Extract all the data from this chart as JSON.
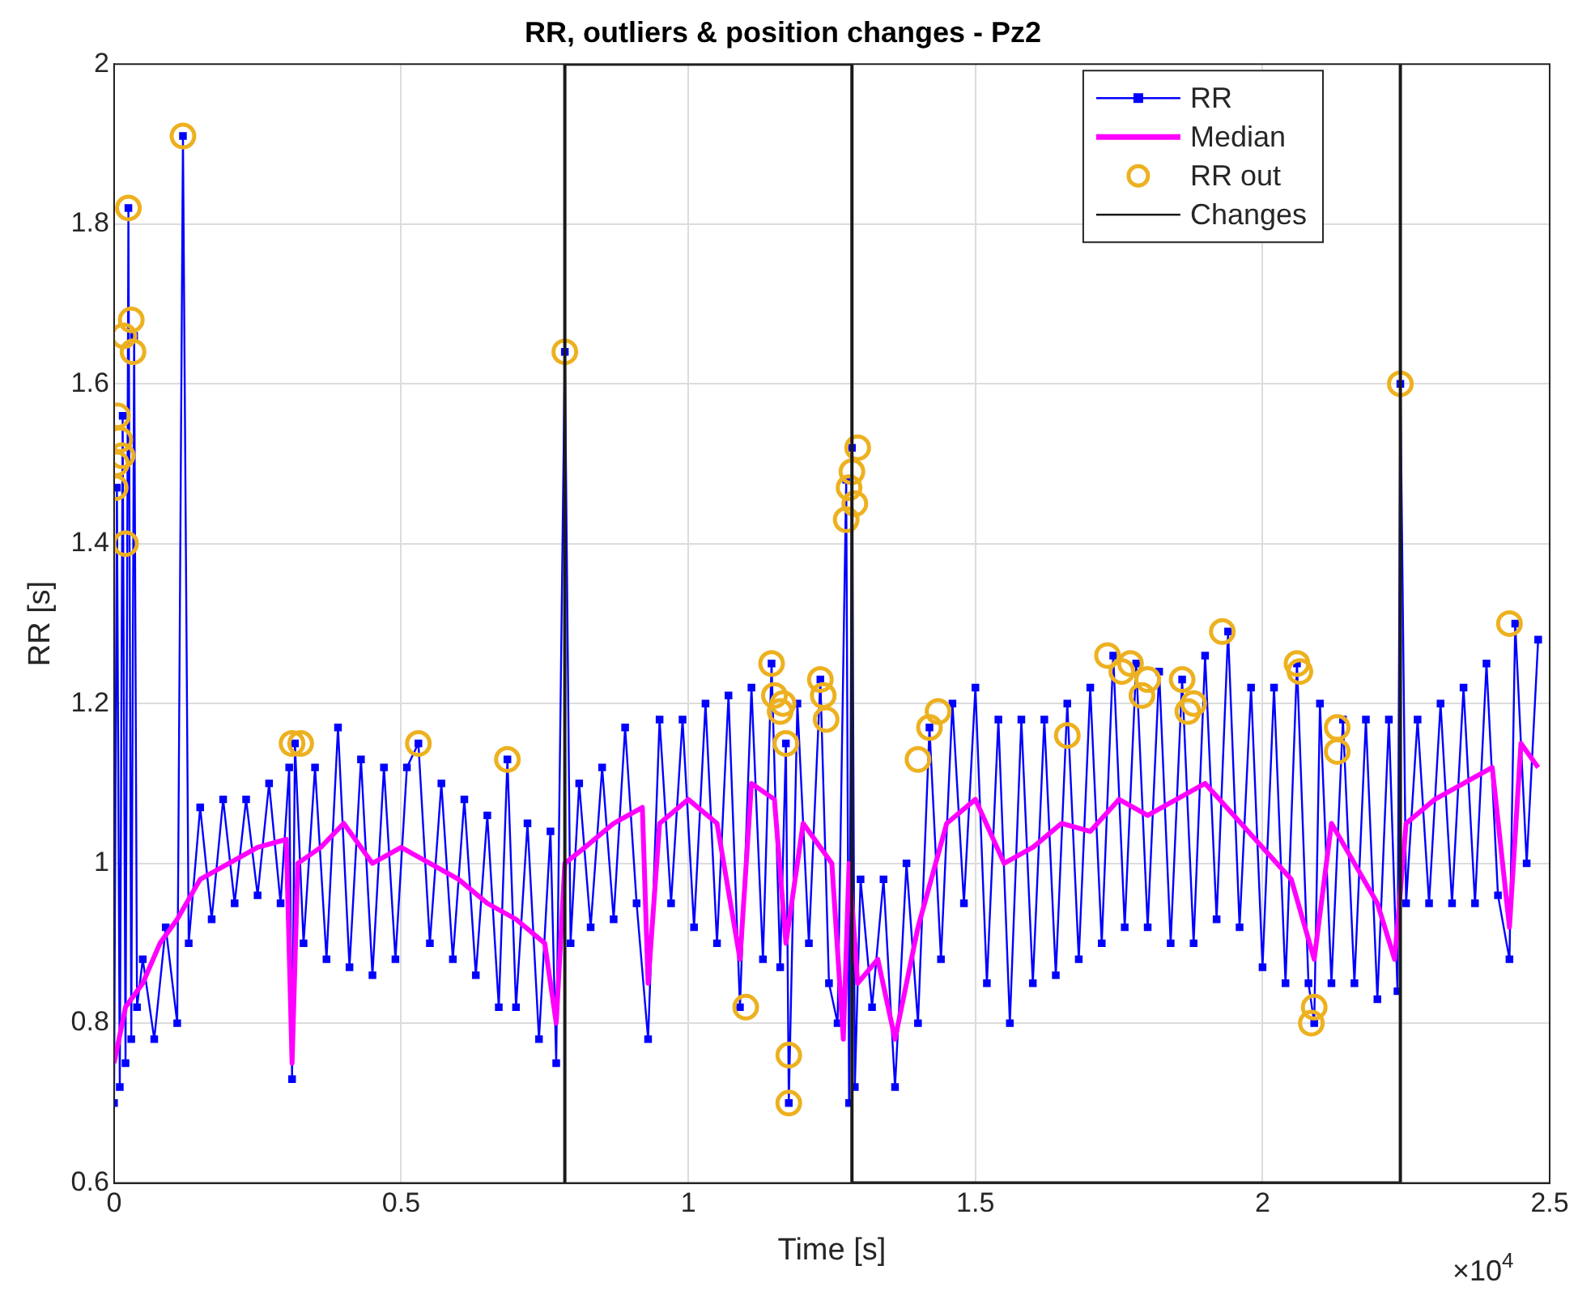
{
  "chart_data": {
    "type": "line",
    "title": "RR, outliers & position changes - Pz2",
    "xlabel": "Time [s]",
    "ylabel": "RR [s]",
    "xlim": [
      0,
      2.5
    ],
    "xticks": [
      0,
      0.5,
      1,
      1.5,
      2,
      2.5
    ],
    "ylim": [
      0.6,
      2
    ],
    "yticks": [
      0.6,
      0.8,
      1,
      1.2,
      1.4,
      1.6,
      1.8,
      2
    ],
    "grid": true,
    "legend": "top right",
    "annotations": [
      "×10$^{4}$"
    ],
    "series": [
      {
        "name": "RR",
        "color": "#0000ff",
        "marker": "square",
        "x": [
          0,
          0.005,
          0.01,
          0.015,
          0.02,
          0.025,
          0.03,
          0.035,
          0.04,
          0.05,
          0.07,
          0.09,
          0.11,
          0.12,
          0.13,
          0.15,
          0.17,
          0.19,
          0.21,
          0.23,
          0.25,
          0.27,
          0.29,
          0.305,
          0.31,
          0.315,
          0.33,
          0.35,
          0.37,
          0.39,
          0.41,
          0.43,
          0.45,
          0.47,
          0.49,
          0.51,
          0.53,
          0.55,
          0.57,
          0.59,
          0.61,
          0.63,
          0.65,
          0.67,
          0.685,
          0.7,
          0.72,
          0.74,
          0.76,
          0.77,
          0.785,
          0.795,
          0.81,
          0.83,
          0.85,
          0.87,
          0.89,
          0.91,
          0.93,
          0.95,
          0.97,
          0.99,
          1.01,
          1.03,
          1.05,
          1.07,
          1.09,
          1.11,
          1.13,
          1.145,
          1.16,
          1.17,
          1.175,
          1.19,
          1.21,
          1.23,
          1.245,
          1.26,
          1.275,
          1.28,
          1.285,
          1.29,
          1.3,
          1.32,
          1.34,
          1.36,
          1.38,
          1.4,
          1.42,
          1.44,
          1.46,
          1.48,
          1.5,
          1.52,
          1.54,
          1.56,
          1.58,
          1.6,
          1.62,
          1.64,
          1.66,
          1.68,
          1.7,
          1.72,
          1.74,
          1.76,
          1.78,
          1.8,
          1.82,
          1.84,
          1.86,
          1.88,
          1.9,
          1.92,
          1.94,
          1.96,
          1.98,
          2,
          2.02,
          2.04,
          2.06,
          2.08,
          2.09,
          2.1,
          2.12,
          2.14,
          2.16,
          2.18,
          2.2,
          2.22,
          2.235,
          2.24,
          2.25,
          2.27,
          2.29,
          2.31,
          2.33,
          2.35,
          2.37,
          2.39,
          2.41,
          2.43,
          2.44,
          2.46,
          2.48
        ],
        "values": [
          0.7,
          1.47,
          0.72,
          1.56,
          0.75,
          1.82,
          0.78,
          1.66,
          0.82,
          0.88,
          0.78,
          0.92,
          0.8,
          1.91,
          0.9,
          1.07,
          0.93,
          1.08,
          0.95,
          1.08,
          0.96,
          1.1,
          0.95,
          1.12,
          0.73,
          1.15,
          0.9,
          1.12,
          0.88,
          1.17,
          0.87,
          1.13,
          0.86,
          1.12,
          0.88,
          1.12,
          1.15,
          0.9,
          1.1,
          0.88,
          1.08,
          0.86,
          1.06,
          0.82,
          1.13,
          0.82,
          1.05,
          0.78,
          1.04,
          0.75,
          1.64,
          0.9,
          1.1,
          0.92,
          1.12,
          0.93,
          1.17,
          0.95,
          0.78,
          1.18,
          0.95,
          1.18,
          0.92,
          1.2,
          0.9,
          1.21,
          0.82,
          1.22,
          0.88,
          1.25,
          0.87,
          1.15,
          0.7,
          1.2,
          0.9,
          1.23,
          0.85,
          0.8,
          1.48,
          0.7,
          1.52,
          0.72,
          0.98,
          0.82,
          0.98,
          0.72,
          1,
          0.8,
          1.17,
          0.88,
          1.2,
          0.95,
          1.22,
          0.85,
          1.18,
          0.8,
          1.18,
          0.85,
          1.18,
          0.86,
          1.2,
          0.88,
          1.22,
          0.9,
          1.26,
          0.92,
          1.25,
          0.92,
          1.24,
          0.9,
          1.23,
          0.9,
          1.26,
          0.93,
          1.29,
          0.92,
          1.22,
          0.87,
          1.22,
          0.85,
          1.25,
          0.85,
          0.8,
          1.2,
          0.85,
          1.18,
          0.85,
          1.18,
          0.83,
          1.18,
          0.84,
          1.6,
          0.95,
          1.18,
          0.95,
          1.2,
          0.95,
          1.22,
          0.95,
          1.25,
          0.96,
          0.88,
          1.3,
          1,
          1.28
        ]
      },
      {
        "name": "Median",
        "color": "#ff00ff",
        "marker": "none",
        "x": [
          0,
          0.02,
          0.05,
          0.08,
          0.11,
          0.15,
          0.2,
          0.25,
          0.3,
          0.31,
          0.32,
          0.36,
          0.4,
          0.45,
          0.5,
          0.55,
          0.6,
          0.65,
          0.7,
          0.75,
          0.77,
          0.785,
          0.82,
          0.87,
          0.92,
          0.93,
          0.95,
          1,
          1.05,
          1.09,
          1.11,
          1.15,
          1.17,
          1.2,
          1.25,
          1.27,
          1.28,
          1.295,
          1.33,
          1.36,
          1.4,
          1.45,
          1.5,
          1.55,
          1.6,
          1.65,
          1.7,
          1.75,
          1.8,
          1.85,
          1.9,
          1.95,
          2,
          2.05,
          2.09,
          2.12,
          2.16,
          2.2,
          2.23,
          2.25,
          2.3,
          2.35,
          2.4,
          2.43,
          2.45,
          2.48
        ],
        "values": [
          0.75,
          0.82,
          0.85,
          0.9,
          0.93,
          0.98,
          1,
          1.02,
          1.03,
          0.75,
          1,
          1.02,
          1.05,
          1,
          1.02,
          1,
          0.98,
          0.95,
          0.93,
          0.9,
          0.8,
          1,
          1.02,
          1.05,
          1.07,
          0.85,
          1.05,
          1.08,
          1.05,
          0.88,
          1.1,
          1.08,
          0.9,
          1.05,
          1,
          0.78,
          1,
          0.85,
          0.88,
          0.78,
          0.92,
          1.05,
          1.08,
          1,
          1.02,
          1.05,
          1.04,
          1.08,
          1.06,
          1.08,
          1.1,
          1.06,
          1.02,
          0.98,
          0.88,
          1.05,
          1,
          0.95,
          0.88,
          1.05,
          1.08,
          1.1,
          1.12,
          0.92,
          1.15,
          1.12
        ]
      },
      {
        "name": "RR out",
        "type": "scatter",
        "color": "#edb120",
        "marker": "circle",
        "x": [
          0.002,
          0.004,
          0.006,
          0.01,
          0.014,
          0.017,
          0.02,
          0.025,
          0.03,
          0.033,
          0.12,
          0.31,
          0.325,
          0.53,
          0.685,
          0.785,
          1.1,
          1.145,
          1.15,
          1.16,
          1.165,
          1.17,
          1.175,
          1.175,
          1.23,
          1.235,
          1.24,
          1.275,
          1.28,
          1.285,
          1.29,
          1.295,
          1.4,
          1.42,
          1.435,
          1.66,
          1.73,
          1.755,
          1.77,
          1.79,
          1.8,
          1.86,
          1.87,
          1.88,
          1.93,
          2.06,
          2.065,
          2.09,
          2.085,
          2.13,
          2.13,
          2.24,
          2.43
        ],
        "values": [
          1.47,
          1.5,
          1.56,
          1.53,
          1.51,
          1.66,
          1.4,
          1.82,
          1.68,
          1.64,
          1.91,
          1.15,
          1.15,
          1.15,
          1.13,
          1.64,
          0.82,
          1.25,
          1.21,
          1.19,
          1.2,
          1.15,
          0.76,
          0.7,
          1.23,
          1.21,
          1.18,
          1.43,
          1.47,
          1.49,
          1.45,
          1.52,
          1.13,
          1.17,
          1.19,
          1.16,
          1.26,
          1.24,
          1.25,
          1.21,
          1.23,
          1.23,
          1.19,
          1.2,
          1.29,
          1.25,
          1.24,
          0.82,
          0.8,
          1.17,
          1.14,
          1.6,
          1.3
        ]
      },
      {
        "name": "Changes",
        "color": "#1a1a1a",
        "marker": "none",
        "x": [
          0.785,
          0.785,
          1.285,
          1.285,
          2.24,
          2.24
        ],
        "values": [
          0.6,
          2,
          2,
          0.6,
          0.6,
          2
        ]
      }
    ]
  }
}
